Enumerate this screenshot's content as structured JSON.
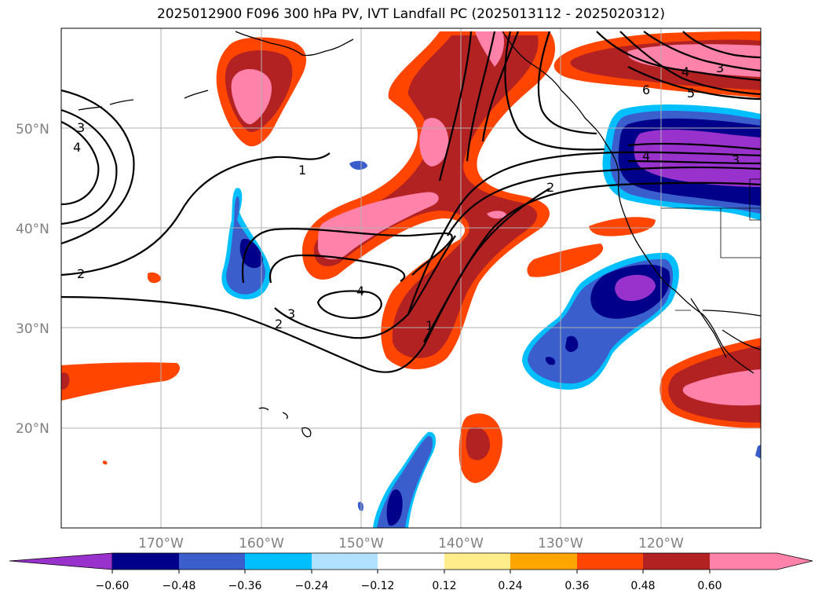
{
  "title": "2025012900 F096 300 hPa PV, IVT Landfall PC (2025013112 - 2025020312)",
  "map": {
    "lon_range": [
      -180,
      -110
    ],
    "lat_range": [
      10,
      60
    ],
    "lat_labels": [
      "20°N",
      "30°N",
      "40°N",
      "50°N"
    ],
    "lon_labels": [
      "170°W",
      "160°W",
      "150°W",
      "140°W",
      "130°W",
      "120°W"
    ]
  },
  "colorbar": {
    "ticks": [
      "−0.60",
      "−0.48",
      "−0.36",
      "−0.24",
      "−0.12",
      "0.12",
      "0.24",
      "0.36",
      "0.48",
      "0.60"
    ],
    "colors": [
      "#9932cc",
      "#00008b",
      "#3a5fcd",
      "#00bfff",
      "#b0e2ff",
      "#ffffff",
      "#ffec8b",
      "#ffa500",
      "#ff4500",
      "#b22222",
      "#ff82ab"
    ]
  },
  "contour_labels": [
    "3",
    "4",
    "2",
    "1",
    "3",
    "2",
    "4",
    "1",
    "2",
    "4",
    "3",
    "6",
    "5",
    "4",
    "3"
  ]
}
